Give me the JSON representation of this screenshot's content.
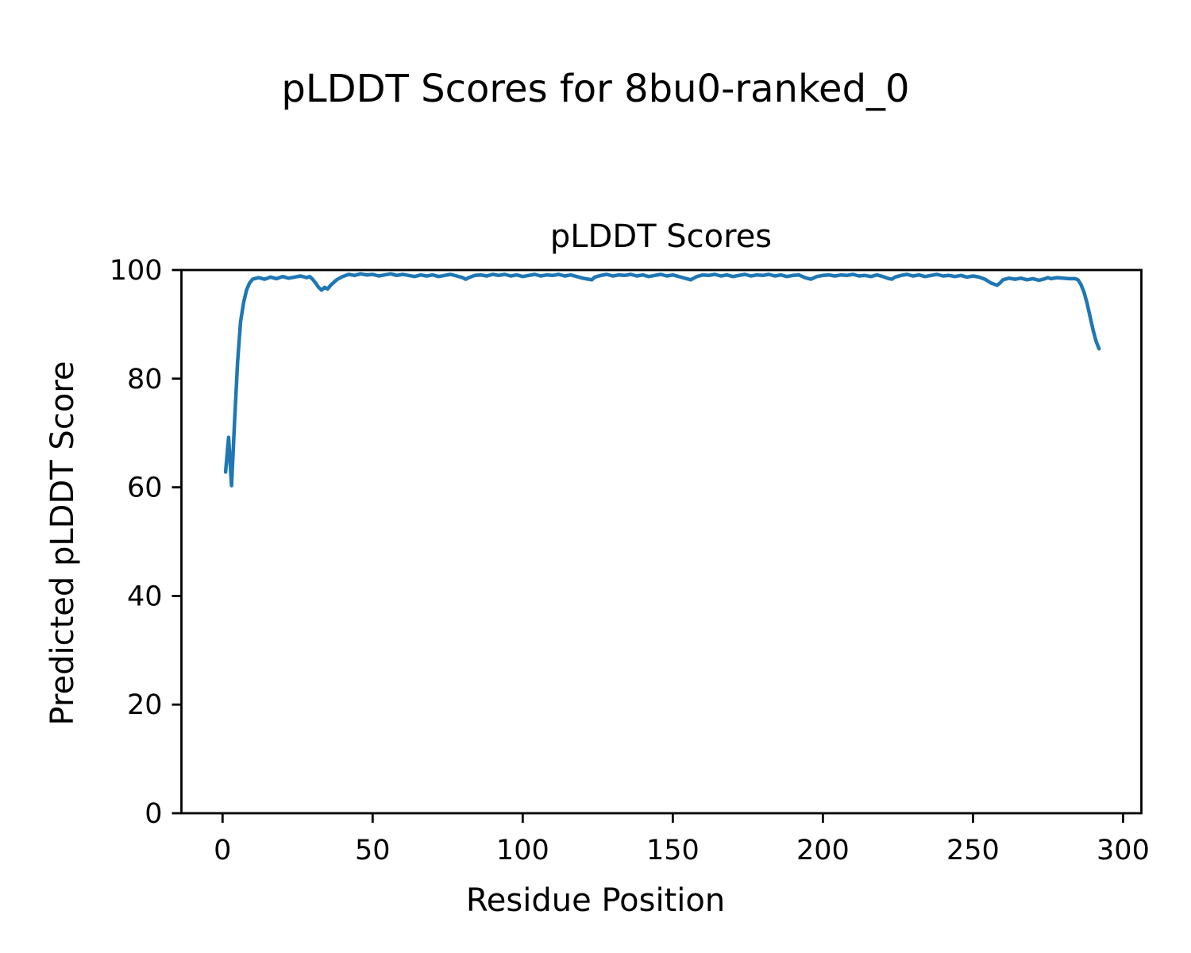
{
  "figure": {
    "suptitle": "pLDDT Scores for 8bu0-ranked_0",
    "background": "#ffffff"
  },
  "chart_data": {
    "type": "line",
    "title": "pLDDT Scores",
    "xlabel": "Residue Position",
    "ylabel": "Predicted pLDDT Score",
    "xlim": [
      -13.7,
      306.1
    ],
    "ylim": [
      0,
      100
    ],
    "xticks": [
      0,
      50,
      100,
      150,
      200,
      250,
      300
    ],
    "yticks": [
      0,
      20,
      40,
      60,
      80,
      100
    ],
    "grid": false,
    "legend_position": "none",
    "line_color": "#1f77b4",
    "axis_color": "#000000",
    "series": [
      {
        "name": "pLDDT",
        "points": [
          [
            1,
            62.8
          ],
          [
            2,
            69.2
          ],
          [
            3,
            60.3
          ],
          [
            4,
            72.0
          ],
          [
            5,
            83.0
          ],
          [
            6,
            90.5
          ],
          [
            7,
            94.0
          ],
          [
            8,
            96.3
          ],
          [
            9,
            97.6
          ],
          [
            10,
            98.3
          ],
          [
            12,
            98.6
          ],
          [
            14,
            98.3
          ],
          [
            16,
            98.7
          ],
          [
            18,
            98.4
          ],
          [
            20,
            98.8
          ],
          [
            22,
            98.5
          ],
          [
            24,
            98.7
          ],
          [
            26,
            98.9
          ],
          [
            28,
            98.6
          ],
          [
            29,
            98.8
          ],
          [
            30,
            98.3
          ],
          [
            31,
            97.6
          ],
          [
            32,
            96.8
          ],
          [
            33,
            96.3
          ],
          [
            34,
            96.8
          ],
          [
            35,
            96.5
          ],
          [
            36,
            97.2
          ],
          [
            38,
            98.2
          ],
          [
            40,
            98.8
          ],
          [
            42,
            99.2
          ],
          [
            44,
            99.0
          ],
          [
            46,
            99.3
          ],
          [
            48,
            99.1
          ],
          [
            50,
            99.2
          ],
          [
            52,
            98.9
          ],
          [
            54,
            99.1
          ],
          [
            56,
            99.3
          ],
          [
            58,
            99.0
          ],
          [
            60,
            99.2
          ],
          [
            62,
            99.0
          ],
          [
            64,
            98.8
          ],
          [
            66,
            99.1
          ],
          [
            68,
            98.9
          ],
          [
            70,
            99.1
          ],
          [
            72,
            98.8
          ],
          [
            74,
            99.0
          ],
          [
            76,
            99.2
          ],
          [
            78,
            98.9
          ],
          [
            80,
            98.6
          ],
          [
            81,
            98.3
          ],
          [
            82,
            98.6
          ],
          [
            84,
            99.0
          ],
          [
            86,
            99.1
          ],
          [
            88,
            98.9
          ],
          [
            90,
            99.2
          ],
          [
            92,
            99.0
          ],
          [
            94,
            99.2
          ],
          [
            96,
            98.9
          ],
          [
            98,
            99.1
          ],
          [
            100,
            98.8
          ],
          [
            102,
            99.0
          ],
          [
            104,
            99.2
          ],
          [
            106,
            98.9
          ],
          [
            108,
            99.1
          ],
          [
            110,
            99.0
          ],
          [
            112,
            99.2
          ],
          [
            114,
            98.9
          ],
          [
            116,
            99.1
          ],
          [
            118,
            98.8
          ],
          [
            120,
            98.5
          ],
          [
            122,
            98.3
          ],
          [
            123,
            98.2
          ],
          [
            124,
            98.7
          ],
          [
            126,
            99.0
          ],
          [
            128,
            99.2
          ],
          [
            130,
            98.9
          ],
          [
            132,
            99.1
          ],
          [
            134,
            99.0
          ],
          [
            136,
            99.2
          ],
          [
            138,
            98.9
          ],
          [
            140,
            99.1
          ],
          [
            142,
            98.8
          ],
          [
            144,
            99.0
          ],
          [
            146,
            99.2
          ],
          [
            148,
            98.9
          ],
          [
            150,
            99.1
          ],
          [
            152,
            98.8
          ],
          [
            154,
            98.5
          ],
          [
            156,
            98.2
          ],
          [
            157,
            98.5
          ],
          [
            158,
            98.8
          ],
          [
            160,
            99.1
          ],
          [
            162,
            99.0
          ],
          [
            164,
            99.2
          ],
          [
            166,
            98.9
          ],
          [
            168,
            99.1
          ],
          [
            170,
            98.8
          ],
          [
            172,
            99.0
          ],
          [
            174,
            99.2
          ],
          [
            176,
            98.9
          ],
          [
            178,
            99.1
          ],
          [
            180,
            99.0
          ],
          [
            182,
            99.2
          ],
          [
            184,
            98.9
          ],
          [
            186,
            99.1
          ],
          [
            188,
            98.8
          ],
          [
            190,
            99.0
          ],
          [
            192,
            99.1
          ],
          [
            194,
            98.6
          ],
          [
            196,
            98.3
          ],
          [
            198,
            98.8
          ],
          [
            200,
            99.0
          ],
          [
            202,
            99.1
          ],
          [
            204,
            98.9
          ],
          [
            206,
            99.1
          ],
          [
            208,
            99.0
          ],
          [
            210,
            99.2
          ],
          [
            212,
            98.9
          ],
          [
            214,
            99.0
          ],
          [
            216,
            98.8
          ],
          [
            218,
            99.1
          ],
          [
            220,
            98.8
          ],
          [
            222,
            98.4
          ],
          [
            223,
            98.3
          ],
          [
            224,
            98.7
          ],
          [
            226,
            99.0
          ],
          [
            228,
            99.2
          ],
          [
            230,
            98.9
          ],
          [
            232,
            99.1
          ],
          [
            234,
            98.8
          ],
          [
            236,
            99.0
          ],
          [
            238,
            99.2
          ],
          [
            240,
            98.9
          ],
          [
            242,
            99.0
          ],
          [
            244,
            98.8
          ],
          [
            246,
            99.0
          ],
          [
            248,
            98.7
          ],
          [
            250,
            98.9
          ],
          [
            252,
            98.7
          ],
          [
            254,
            98.3
          ],
          [
            256,
            97.6
          ],
          [
            258,
            97.2
          ],
          [
            259,
            97.6
          ],
          [
            260,
            98.2
          ],
          [
            262,
            98.5
          ],
          [
            264,
            98.3
          ],
          [
            266,
            98.5
          ],
          [
            268,
            98.2
          ],
          [
            270,
            98.4
          ],
          [
            272,
            98.1
          ],
          [
            274,
            98.4
          ],
          [
            275,
            98.6
          ],
          [
            276,
            98.4
          ],
          [
            278,
            98.6
          ],
          [
            280,
            98.5
          ],
          [
            282,
            98.4
          ],
          [
            284,
            98.4
          ],
          [
            285,
            98.2
          ],
          [
            286,
            97.3
          ],
          [
            287,
            95.9
          ],
          [
            288,
            93.9
          ],
          [
            289,
            91.4
          ],
          [
            290,
            89.0
          ],
          [
            291,
            86.9
          ],
          [
            292,
            85.5
          ]
        ]
      }
    ]
  }
}
